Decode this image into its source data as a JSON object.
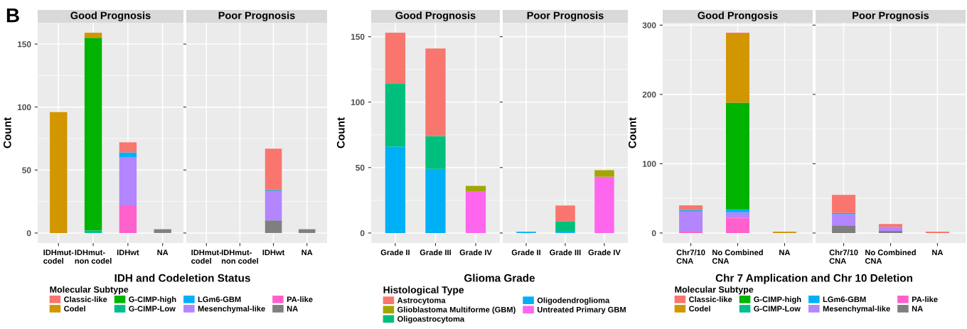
{
  "chart_data": [
    {
      "type": "bar",
      "stacked": true,
      "title": "Good Prognosis",
      "xlabel": "IDH and Codeletion Status",
      "ylabel": "Count",
      "legend_title": "Molecular Subtype",
      "legend": "bottom",
      "grid": true,
      "annotations": [
        "B"
      ],
      "categories": [
        "IDHmut-\ncodel",
        "IDHmut-\nnon codel",
        "IDHwt",
        "NA"
      ],
      "ylim": [
        -7.95,
        166.95
      ],
      "yticks": [
        0,
        50,
        100,
        150
      ],
      "series": [
        {
          "name": "NA",
          "color": "#7f7f7f",
          "values": [
            0,
            0,
            0,
            3
          ]
        },
        {
          "name": "PA-like",
          "color": "#ff61cc",
          "values": [
            0,
            0,
            22,
            0
          ]
        },
        {
          "name": "Mesenchymal-like",
          "color": "#b385ff",
          "values": [
            0,
            0,
            38,
            0
          ]
        },
        {
          "name": "LGm6-GBM",
          "color": "#00b0f6",
          "values": [
            0,
            0,
            4,
            0
          ]
        },
        {
          "name": "G-CIMP-Low",
          "color": "#00be8c",
          "values": [
            0,
            2,
            0,
            0
          ]
        },
        {
          "name": "G-CIMP-high",
          "color": "#00b300",
          "values": [
            0,
            153,
            0,
            0
          ]
        },
        {
          "name": "Codel",
          "color": "#d29600",
          "values": [
            96,
            4,
            0,
            0
          ]
        },
        {
          "name": "Classic-like",
          "color": "#f8766d",
          "values": [
            0,
            0,
            8,
            0
          ]
        }
      ]
    },
    {
      "type": "bar",
      "stacked": true,
      "title": "Poor Prognosis",
      "grid": true,
      "tick_labels": "x",
      "categories": [
        "IDHmut-\ncodel",
        "IDHmut-\nnon codel",
        "IDHwt",
        "NA"
      ],
      "ylim": [
        -7.95,
        166.95
      ],
      "yticks": [
        0,
        50,
        100,
        150
      ],
      "series": [
        {
          "color": "#7f7f7f",
          "values": [
            0,
            0,
            10,
            3
          ]
        },
        {
          "color": "#b385ff",
          "values": [
            0,
            0,
            23,
            0
          ]
        },
        {
          "color": "#00b0f6",
          "values": [
            0,
            0,
            1,
            0
          ]
        },
        {
          "color": "#f8766d",
          "values": [
            0,
            0,
            33,
            0
          ]
        }
      ]
    },
    {
      "type": "bar",
      "stacked": true,
      "title": "Good Prognosis",
      "xlabel": "Glioma Grade",
      "ylabel": "Count",
      "legend_title": "Histological Type",
      "legend": "bottom",
      "grid": true,
      "categories": [
        "Grade II",
        "Grade III",
        "Grade IV"
      ],
      "ylim": [
        -7.65,
        160.65
      ],
      "yticks": [
        0,
        50,
        100,
        150
      ],
      "series": [
        {
          "name": "Untreated Primary GBM",
          "color": "#ff66ee",
          "values": [
            0,
            0,
            32
          ]
        },
        {
          "name": "Oligodendroglioma",
          "color": "#00b0f6",
          "values": [
            66,
            49,
            0
          ]
        },
        {
          "name": "Oligoastrocytoma",
          "color": "#00bf7d",
          "values": [
            48,
            25,
            0
          ]
        },
        {
          "name": "Glioblastoma Multiforme (GBM)",
          "color": "#a3a500",
          "values": [
            0,
            0,
            4
          ]
        },
        {
          "name": "Astrocytoma",
          "color": "#f8766d",
          "values": [
            39,
            67,
            0
          ]
        }
      ]
    },
    {
      "type": "bar",
      "stacked": true,
      "title": "Poor Prognosis",
      "grid": true,
      "tick_labels": "x",
      "categories": [
        "Grade II",
        "Grade III",
        "Grade IV"
      ],
      "ylim": [
        -7.65,
        160.65
      ],
      "yticks": [
        0,
        50,
        100,
        150
      ],
      "series": [
        {
          "color": "#ff66ee",
          "values": [
            0,
            0,
            43
          ]
        },
        {
          "color": "#00b0f6",
          "values": [
            1,
            1,
            0
          ]
        },
        {
          "color": "#00bf7d",
          "values": [
            0,
            8,
            0
          ]
        },
        {
          "color": "#a3a500",
          "values": [
            0,
            0,
            5
          ]
        },
        {
          "color": "#f8766d",
          "values": [
            0,
            12,
            0
          ]
        }
      ]
    },
    {
      "type": "bar",
      "stacked": true,
      "title": "Good Prongosis",
      "xlabel": "Chr 7 Amplication and Chr 10 Deletion",
      "ylabel": "Count",
      "legend_title": "Molecular Subtype",
      "legend": "bottom",
      "grid": true,
      "categories": [
        "Chr7/10\nCNA",
        "No Combined\nCNA",
        "NA"
      ],
      "ylim": [
        -14.45,
        303.45
      ],
      "yticks": [
        0,
        100,
        200,
        300
      ],
      "series": [
        {
          "name": "NA",
          "color": "#7f7f7f",
          "values": [
            0,
            0,
            0
          ]
        },
        {
          "name": "PA-like",
          "color": "#ff61cc",
          "values": [
            2,
            22,
            0
          ]
        },
        {
          "name": "Mesenchymal-like",
          "color": "#b385ff",
          "values": [
            29,
            8,
            0
          ]
        },
        {
          "name": "LGm6-GBM",
          "color": "#00b0f6",
          "values": [
            2,
            4,
            0
          ]
        },
        {
          "name": "G-CIMP-Low",
          "color": "#00be8c",
          "values": [
            0,
            0,
            0
          ]
        },
        {
          "name": "G-CIMP-high",
          "color": "#00b300",
          "values": [
            0,
            154,
            0
          ]
        },
        {
          "name": "Codel",
          "color": "#d29600",
          "values": [
            0,
            99,
            2
          ]
        },
        {
          "name": "Classic-like",
          "color": "#f8766d",
          "values": [
            7,
            2,
            0
          ]
        }
      ]
    },
    {
      "type": "bar",
      "stacked": true,
      "title": "Poor Prognosis",
      "grid": true,
      "tick_labels": "x",
      "categories": [
        "Chr7/10\nCNA",
        "No Combined\nCNA",
        "NA"
      ],
      "ylim": [
        -14.45,
        303.45
      ],
      "yticks": [
        0,
        100,
        200,
        300
      ],
      "series": [
        {
          "color": "#7f7f7f",
          "values": [
            11,
            3,
            0
          ]
        },
        {
          "color": "#b385ff",
          "values": [
            16,
            6,
            0
          ]
        },
        {
          "color": "#00b0f6",
          "values": [
            2,
            0,
            0
          ]
        },
        {
          "color": "#f8766d",
          "values": [
            26,
            4,
            2
          ]
        }
      ]
    }
  ]
}
